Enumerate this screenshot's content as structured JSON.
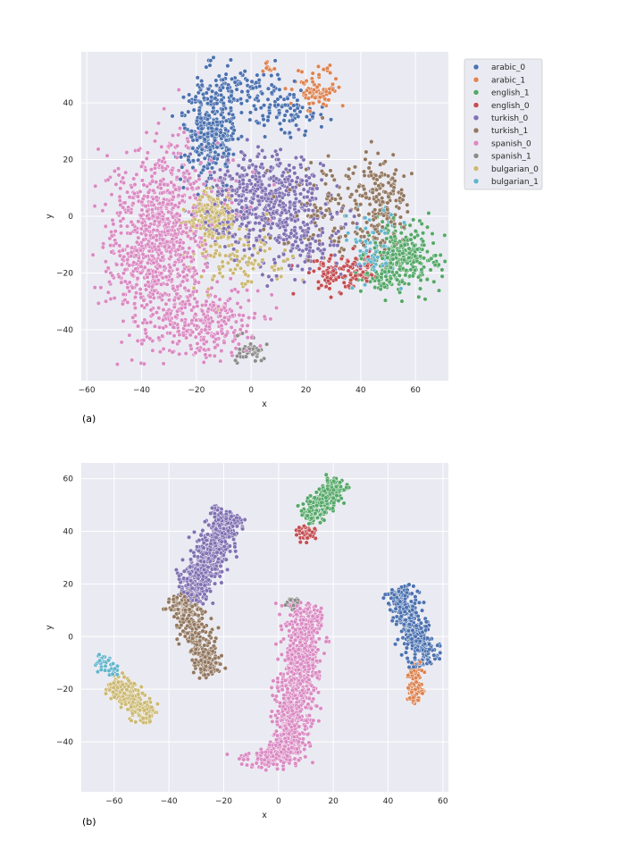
{
  "figure": {
    "legend_entries": [
      {
        "name": "arabic_0",
        "color": "#4c72b0"
      },
      {
        "name": "arabic_1",
        "color": "#dd8452"
      },
      {
        "name": "english_1",
        "color": "#55a868"
      },
      {
        "name": "english_0",
        "color": "#c44e52"
      },
      {
        "name": "turkish_0",
        "color": "#8172b3"
      },
      {
        "name": "turkish_1",
        "color": "#937860"
      },
      {
        "name": "spanish_0",
        "color": "#da8bc3"
      },
      {
        "name": "spanish_1",
        "color": "#8c8c8c"
      },
      {
        "name": "bulgarian_0",
        "color": "#ccb974"
      },
      {
        "name": "bulgarian_1",
        "color": "#64b5cd"
      }
    ]
  },
  "chart_data": [
    {
      "type": "scatter",
      "panel_label": "(a)",
      "xlabel": "x",
      "ylabel": "y",
      "xlim": [
        -62,
        72
      ],
      "ylim": [
        -58,
        58
      ],
      "xticks": [
        -60,
        -40,
        -20,
        0,
        20,
        40,
        60
      ],
      "yticks": [
        -40,
        -20,
        0,
        20,
        40
      ],
      "xtick_labels": [
        "−60",
        "−40",
        "−20",
        "0",
        "20",
        "40",
        "60"
      ],
      "ytick_labels": [
        "−40",
        "−20",
        "0",
        "20",
        "40"
      ],
      "grid": true,
      "legend": "upper right, outside plot",
      "clusters": [
        {
          "series": "spanish_0",
          "cx": -35,
          "cy": -10,
          "sx": 9,
          "sy": 17,
          "n": 900
        },
        {
          "series": "spanish_0",
          "cx": -15,
          "cy": -38,
          "sx": 9,
          "sy": 6,
          "n": 260
        },
        {
          "series": "spanish_0",
          "cx": -20,
          "cy": 10,
          "sx": 14,
          "sy": 8,
          "n": 80
        },
        {
          "series": "arabic_0",
          "cx": -15,
          "cy": 30,
          "sx": 5,
          "sy": 9,
          "n": 350
        },
        {
          "series": "arabic_0",
          "cx": 0,
          "cy": 45,
          "sx": 7,
          "sy": 4,
          "n": 80
        },
        {
          "series": "arabic_0",
          "cx": 12,
          "cy": 36,
          "sx": 6,
          "sy": 4,
          "n": 80
        },
        {
          "series": "arabic_1",
          "cx": 24,
          "cy": 44,
          "sx": 4,
          "sy": 3.5,
          "n": 90
        },
        {
          "series": "arabic_1",
          "cx": 6,
          "cy": 52,
          "sx": 1.2,
          "sy": 1.2,
          "n": 10
        },
        {
          "series": "turkish_0",
          "cx": 5,
          "cy": 8,
          "sx": 11,
          "sy": 7,
          "n": 450
        },
        {
          "series": "turkish_0",
          "cx": 18,
          "cy": -8,
          "sx": 9,
          "sy": 7,
          "n": 150
        },
        {
          "series": "turkish_0",
          "cx": -8,
          "cy": -5,
          "sx": 5,
          "sy": 5,
          "n": 60
        },
        {
          "series": "turkish_1",
          "cx": 48,
          "cy": 5,
          "sx": 5,
          "sy": 8,
          "n": 160
        },
        {
          "series": "turkish_1",
          "cx": 30,
          "cy": 3,
          "sx": 9,
          "sy": 10,
          "n": 110
        },
        {
          "series": "english_1",
          "cx": 56,
          "cy": -14,
          "sx": 6,
          "sy": 6,
          "n": 280
        },
        {
          "series": "english_1",
          "cx": 46,
          "cy": -21,
          "sx": 5,
          "sy": 3,
          "n": 50
        },
        {
          "series": "english_0",
          "cx": 30,
          "cy": -21,
          "sx": 6,
          "sy": 3.5,
          "n": 90
        },
        {
          "series": "english_0",
          "cx": 40,
          "cy": -18,
          "sx": 3,
          "sy": 3,
          "n": 35
        },
        {
          "series": "bulgarian_0",
          "cx": -14,
          "cy": 0,
          "sx": 4,
          "sy": 4,
          "n": 220
        },
        {
          "series": "bulgarian_0",
          "cx": -5,
          "cy": -15,
          "sx": 10,
          "sy": 7,
          "n": 110
        },
        {
          "series": "bulgarian_1",
          "cx": 45,
          "cy": -10,
          "sx": 5,
          "sy": 6,
          "n": 80
        },
        {
          "series": "spanish_1",
          "cx": 0,
          "cy": -48,
          "sx": 3,
          "sy": 2,
          "n": 40
        }
      ]
    },
    {
      "type": "scatter",
      "panel_label": "(b)",
      "xlabel": "x",
      "ylabel": "y",
      "xlim": [
        -72,
        62
      ],
      "ylim": [
        -59,
        66
      ],
      "xticks": [
        -60,
        -40,
        -20,
        0,
        20,
        40,
        60
      ],
      "yticks": [
        -40,
        -20,
        0,
        20,
        40,
        60
      ],
      "xtick_labels": [
        "−60",
        "−40",
        "−20",
        "0",
        "20",
        "40",
        "60"
      ],
      "ytick_labels": [
        "−40",
        "−20",
        "0",
        "20",
        "40",
        "60"
      ],
      "grid": true,
      "legend": "none",
      "clusters": [
        {
          "series": "turkish_0",
          "from": [
            -33,
            15
          ],
          "to": [
            -18,
            47
          ],
          "width": 3.2,
          "n": 650
        },
        {
          "series": "turkish_1",
          "from": [
            -36,
            16
          ],
          "to": [
            -25,
            -14
          ],
          "width": 2.8,
          "n": 350
        },
        {
          "series": "spanish_0",
          "from": [
            3,
            -47
          ],
          "to": [
            11,
            12
          ],
          "width": 3.5,
          "n": 1000
        },
        {
          "series": "spanish_0",
          "cx": -3,
          "cy": -46,
          "sx": 5,
          "sy": 2.2,
          "n": 120
        },
        {
          "series": "spanish_1",
          "cx": 5,
          "cy": 13,
          "sx": 1.2,
          "sy": 1.5,
          "n": 25
        },
        {
          "series": "english_1",
          "from": [
            10,
            45
          ],
          "to": [
            22,
            59
          ],
          "width": 2.2,
          "n": 280
        },
        {
          "series": "english_0",
          "cx": 10,
          "cy": 39,
          "sx": 1.8,
          "sy": 1.6,
          "n": 45
        },
        {
          "series": "arabic_0",
          "from": [
            44,
            18
          ],
          "to": [
            54,
            -10
          ],
          "width": 2.6,
          "n": 400
        },
        {
          "series": "arabic_1",
          "from": [
            50,
            -10
          ],
          "to": [
            50,
            -25
          ],
          "width": 1.6,
          "n": 100
        },
        {
          "series": "bulgarian_0",
          "from": [
            -60,
            -17
          ],
          "to": [
            -46,
            -31
          ],
          "width": 2.2,
          "n": 280
        },
        {
          "series": "bulgarian_1",
          "from": [
            -66,
            -8
          ],
          "to": [
            -59,
            -14
          ],
          "width": 1.3,
          "n": 45
        }
      ]
    }
  ]
}
